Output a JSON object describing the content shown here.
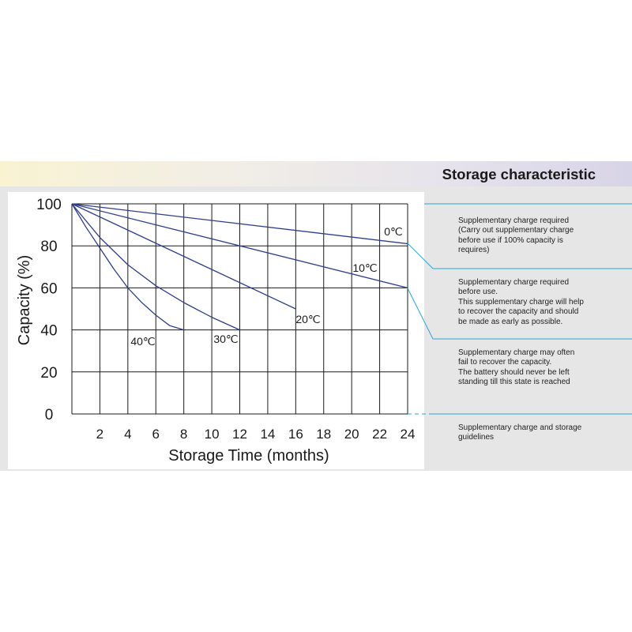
{
  "header": {
    "title": "Storage characteristic"
  },
  "notes": [
    [
      "Supplementary charge required",
      "(Carry out supplementary charge",
      "before use if 100% capacity is",
      "requires)"
    ],
    [
      "Supplementary charge required",
      "before use.",
      "This supplementary charge will help",
      "to recover the capacity and should",
      "be made  as early as possible."
    ],
    [
      "Supplementary charge may often",
      "fail to recover the capacity.",
      "The battery should never be left",
      "standing till this state is reached"
    ],
    [
      "Supplementary charge and storage",
      "guidelines"
    ]
  ],
  "colors": {
    "line": "#2f3e8c",
    "grid": "#1a1a1a",
    "leader": "#2aa6d6",
    "text": "#222222"
  },
  "chart_data": {
    "type": "line",
    "xlabel": "Storage Time (months)",
    "ylabel": "Capacity  (%)",
    "xlim": [
      0,
      24
    ],
    "ylim": [
      0,
      100
    ],
    "xticks": [
      2,
      4,
      6,
      8,
      10,
      12,
      14,
      16,
      18,
      20,
      22,
      24
    ],
    "yticks": [
      0,
      20,
      40,
      60,
      80,
      100
    ],
    "grid": true,
    "series": [
      {
        "name": "0℃",
        "x": [
          0,
          24
        ],
        "y": [
          100,
          81
        ]
      },
      {
        "name": "10℃",
        "x": [
          0,
          24
        ],
        "y": [
          100,
          60
        ]
      },
      {
        "name": "20℃",
        "x": [
          0,
          16
        ],
        "y": [
          100,
          50
        ]
      },
      {
        "name": "30℃",
        "x": [
          0,
          2,
          4,
          6,
          8,
          10,
          12
        ],
        "y": [
          100,
          84,
          71,
          61,
          53,
          46,
          40
        ]
      },
      {
        "name": "40℃",
        "x": [
          0,
          1,
          2,
          3,
          4,
          5,
          6,
          7,
          8
        ],
        "y": [
          100,
          89,
          79,
          69,
          60,
          53,
          47,
          42,
          40
        ]
      }
    ]
  }
}
